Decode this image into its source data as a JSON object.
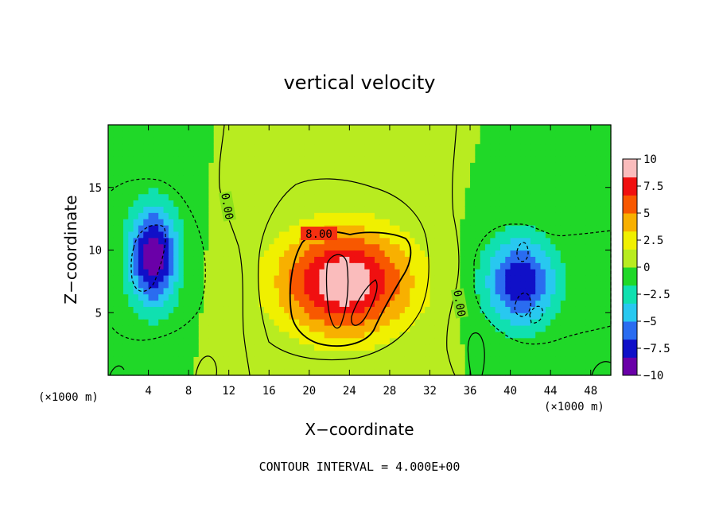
{
  "chart_data": {
    "type": "heatmap",
    "title": "vertical velocity",
    "xlabel": "X−coordinate",
    "ylabel": "Z−coordinate",
    "x_unit_label": "(×1000 m)",
    "xlim": [
      0,
      50
    ],
    "ylim": [
      0,
      20
    ],
    "x_ticks": [
      4,
      8,
      12,
      16,
      20,
      24,
      28,
      32,
      36,
      40,
      44,
      48
    ],
    "y_ticks": [
      5,
      10,
      15
    ],
    "colorbar": {
      "range": [
        -10,
        10
      ],
      "ticks": [
        "10",
        "7.5",
        "5",
        "2.5",
        "0",
        "−2.5",
        "−5",
        "−7.5",
        "−10"
      ],
      "colors": [
        "#6a00a8",
        "#1010c8",
        "#2a6cf0",
        "#28c8f0",
        "#10e0b0",
        "#20d828",
        "#b8ec20",
        "#f0f000",
        "#f8b000",
        "#f85800",
        "#f01010",
        "#fabcbc"
      ]
    },
    "features": [
      {
        "kind": "updraft",
        "center_x": 23.5,
        "center_z": 7.5,
        "peak": 10,
        "width_x": 6.5,
        "width_z": 4.2
      },
      {
        "kind": "downdraft",
        "center_x": 4.5,
        "center_z": 9.5,
        "peak": -10,
        "width_x": 2.4,
        "width_z": 4.0
      },
      {
        "kind": "downdraft",
        "center_x": 41,
        "center_z": 7.5,
        "peak": -8,
        "width_x": 3.6,
        "width_z": 3.6
      }
    ],
    "contour_labels": [
      "0.00",
      "8.00",
      "0.00"
    ],
    "annotation": "CONTOUR INTERVAL = 4.000E+00"
  }
}
